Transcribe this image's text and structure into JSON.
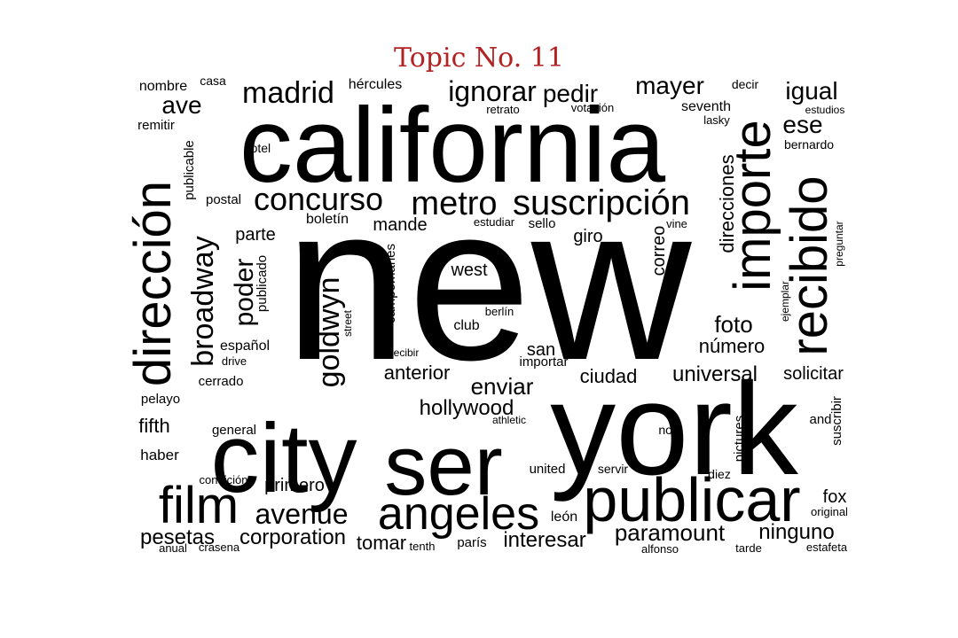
{
  "title": "Topic No. 11",
  "colors": {
    "title": "#b22222",
    "words": "#000000",
    "background": "#ffffff"
  },
  "words": [
    "new",
    "york",
    "california",
    "city",
    "ser",
    "publicar",
    "dirección",
    "importe",
    "recibido",
    "angeles",
    "film",
    "suscripción",
    "metro",
    "concurso",
    "madrid",
    "ignorar",
    "pedir",
    "mayer",
    "igual",
    "ese",
    "ave",
    "broadway",
    "goldwyn",
    "poder",
    "avenue",
    "corporation",
    "pesetas",
    "paramount",
    "ninguno",
    "hollywood",
    "enviar",
    "foto",
    "número",
    "universal",
    "ciudad",
    "anterior",
    "fifth",
    "primero",
    "interesar",
    "tomar",
    "west",
    "giro",
    "mande",
    "parte",
    "direcciones",
    "correo",
    "solicitar",
    "fox",
    "san",
    "hércules",
    "nombre",
    "casa",
    "decir",
    "seventh",
    "retrato",
    "votación",
    "estudios",
    "lasky",
    "bernardo",
    "remitir",
    "publicable",
    "hotel",
    "postal",
    "boletín",
    "estudiar",
    "sello",
    "vine",
    "preguntar",
    "publicado",
    "campomanes",
    "street",
    "ejemplar",
    "club",
    "berlín",
    "español",
    "drive",
    "recibir",
    "importar",
    "cerrado",
    "pelayo",
    "general",
    "athletic",
    "nota",
    "pictures",
    "and",
    "suscribir",
    "haber",
    "condición",
    "united",
    "servir",
    "diez",
    "original",
    "león",
    "parís",
    "tenth",
    "anual",
    "crasena",
    "alfonso",
    "tarde",
    "estafeta"
  ]
}
